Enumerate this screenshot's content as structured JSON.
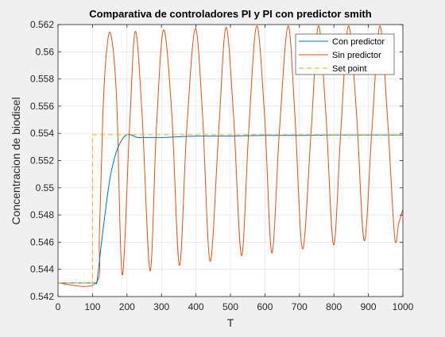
{
  "chart_data": {
    "type": "line",
    "title": "Comparativa de controladores PI y PI con predictor smith",
    "xlabel": "T",
    "ylabel": "Concentracion de biodisel",
    "xlim": [
      0,
      1000
    ],
    "ylim": [
      0.542,
      0.562
    ],
    "x_ticks": [
      0,
      100,
      200,
      300,
      400,
      500,
      600,
      700,
      800,
      900,
      1000
    ],
    "x_tick_labels": [
      "0",
      "100",
      "200",
      "300",
      "400",
      "500",
      "600",
      "700",
      "800",
      "900",
      "1000"
    ],
    "y_ticks": [
      0.542,
      0.544,
      0.546,
      0.548,
      0.55,
      0.552,
      0.554,
      0.556,
      0.558,
      0.56,
      0.562
    ],
    "y_tick_labels": [
      "0.542",
      "0.544",
      "0.546",
      "0.548",
      "0.55",
      "0.552",
      "0.554",
      "0.556",
      "0.558",
      "0.56",
      "0.562"
    ],
    "grid": true,
    "legend_position": "top-right",
    "series": [
      {
        "name": "Con predictor",
        "color": "#0072BD",
        "style": "solid",
        "x": [
          0,
          100,
          110,
          113,
          120,
          130,
          140,
          150,
          160,
          170,
          180,
          190,
          200,
          210,
          220,
          230,
          250,
          270,
          300,
          350,
          400,
          450,
          500,
          600,
          700,
          800,
          900,
          1000
        ],
        "y": [
          0.543,
          0.543,
          0.543,
          0.5431,
          0.5446,
          0.5468,
          0.5488,
          0.5506,
          0.5518,
          0.5527,
          0.5533,
          0.5537,
          0.5539,
          0.5539,
          0.5538,
          0.5537,
          0.5537,
          0.5537,
          0.5537,
          0.55375,
          0.5538,
          0.5538,
          0.5538,
          0.55385,
          0.55385,
          0.55388,
          0.55388,
          0.55388
        ]
      },
      {
        "name": "Sin predictor",
        "color": "#D95319",
        "style": "solid",
        "x": [
          0,
          110,
          120,
          130,
          140,
          153,
          170,
          186,
          207,
          224,
          244,
          267,
          285,
          306,
          330,
          352,
          373,
          398,
          419,
          441,
          466,
          487,
          509,
          532,
          553,
          576,
          599,
          620,
          642,
          667,
          687,
          709,
          734,
          755,
          777,
          799,
          820,
          842,
          866,
          888,
          910,
          933,
          955,
          976,
          988,
          1000
        ],
        "y": [
          0.543,
          0.543,
          0.5465,
          0.5553,
          0.5598,
          0.5613,
          0.5565,
          0.5436,
          0.5542,
          0.5615,
          0.5553,
          0.5439,
          0.5542,
          0.5616,
          0.5554,
          0.5443,
          0.5542,
          0.5617,
          0.5554,
          0.5446,
          0.5542,
          0.5618,
          0.5553,
          0.545,
          0.5542,
          0.5619,
          0.5553,
          0.5452,
          0.5542,
          0.5619,
          0.5553,
          0.5455,
          0.5542,
          0.5619,
          0.5553,
          0.5458,
          0.5542,
          0.5619,
          0.5553,
          0.5461,
          0.5542,
          0.5619,
          0.5553,
          0.5464,
          0.5474,
          0.5484
        ]
      },
      {
        "name": "Set point",
        "color": "#EDB120",
        "style": "dashed",
        "x": [
          0,
          100,
          100,
          1000
        ],
        "y": [
          0.543,
          0.543,
          0.5539,
          0.5539
        ]
      }
    ]
  }
}
